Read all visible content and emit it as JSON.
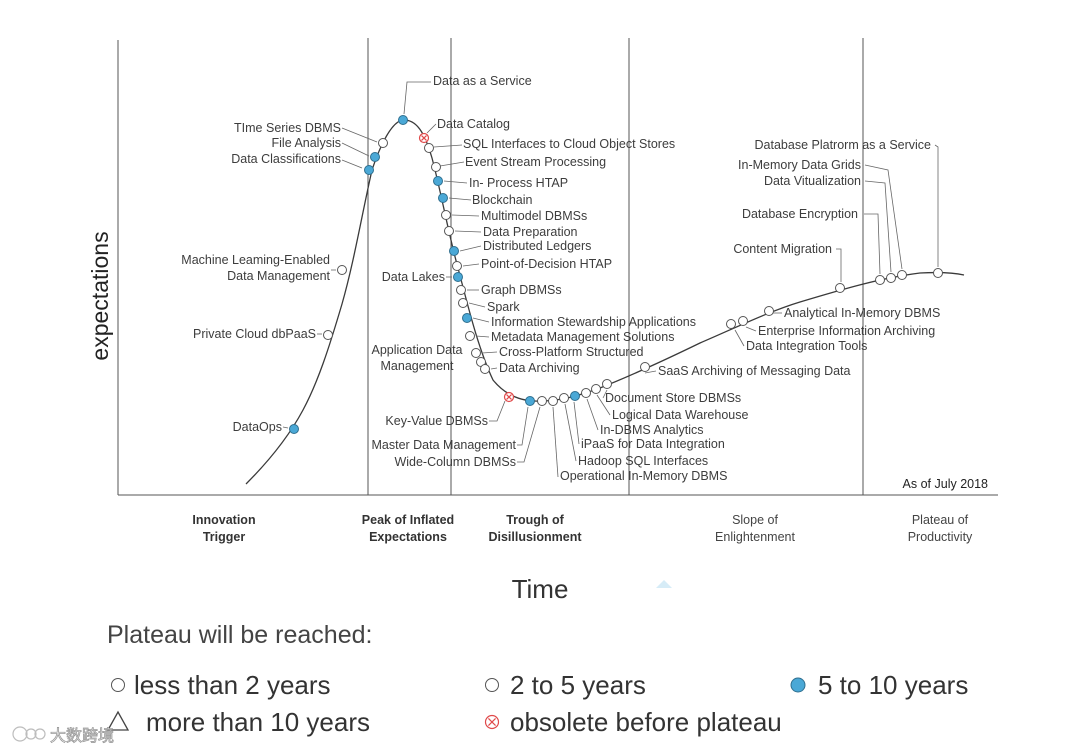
{
  "axes": {
    "y_label": "expectations",
    "x_label": "Time"
  },
  "as_of": "As of July 2018",
  "phases": [
    {
      "lines": [
        "Innovation",
        "Trigger"
      ],
      "bold": true
    },
    {
      "lines": [
        "Peak of Inflated",
        "Expectations"
      ],
      "bold": true
    },
    {
      "lines": [
        "Trough of",
        "Disillusionment"
      ],
      "bold": true
    },
    {
      "lines": [
        "Slope of",
        "Enlightenment"
      ],
      "bold": false
    },
    {
      "lines": [
        "Plateau of",
        "Productivity"
      ],
      "bold": false
    }
  ],
  "legend": {
    "title": "Plateau will be reached:",
    "items": [
      {
        "key": "lt2",
        "marker": "white-circle",
        "label": "less than 2 years"
      },
      {
        "key": "2to5",
        "marker": "white-circle",
        "label": "2 to 5 years"
      },
      {
        "key": "5to10",
        "marker": "blue-circle",
        "label": "5 to 10 years"
      },
      {
        "key": "gt10",
        "marker": "triangle",
        "label": "more than 10 years"
      },
      {
        "key": "obs",
        "marker": "red-x-circle",
        "label": "obsolete before plateau"
      }
    ]
  },
  "colors": {
    "blue": "#4aa8d6",
    "blue_stroke": "#2f6f8f",
    "red": "#e0494a",
    "curve": "#3a3a3a",
    "divider": "#555555"
  },
  "watermark": "大数跨境",
  "technologies": [
    {
      "name": "DataOps",
      "status": "5to10"
    },
    {
      "name": "Private Cloud dbPaaS",
      "status": "2to5"
    },
    {
      "name": "Machine Leaming-Enabled Data Management",
      "status": "2to5"
    },
    {
      "name": "Data Classifications",
      "status": "5to10"
    },
    {
      "name": "File Analysis",
      "status": "5to10"
    },
    {
      "name": "TIme Series DBMS",
      "status": "2to5"
    },
    {
      "name": "Data as a Service",
      "status": "5to10"
    },
    {
      "name": "Data Catalog",
      "status": "obs"
    },
    {
      "name": "SQL Interfaces to Cloud Object Stores",
      "status": "2to5"
    },
    {
      "name": "Event Stream Processing",
      "status": "2to5"
    },
    {
      "name": "In- Process HTAP",
      "status": "5to10"
    },
    {
      "name": "Blockchain",
      "status": "5to10"
    },
    {
      "name": "Multimodel DBMSs",
      "status": "2to5"
    },
    {
      "name": "Data Preparation",
      "status": "2to5"
    },
    {
      "name": "Distributed Ledgers",
      "status": "5to10"
    },
    {
      "name": "Point-of-Decision HTAP",
      "status": "2to5"
    },
    {
      "name": "Data Lakes",
      "status": "5to10"
    },
    {
      "name": "Graph DBMSs",
      "status": "2to5"
    },
    {
      "name": "Spark",
      "status": "2to5"
    },
    {
      "name": "Information Stewardship Applications",
      "status": "5to10"
    },
    {
      "name": "Metadata Management Solutions",
      "status": "2to5"
    },
    {
      "name": "Cross-Platform Structured",
      "status": "2to5"
    },
    {
      "name": "Application Data Management",
      "status": "2to5"
    },
    {
      "name": "Data Archiving",
      "status": "2to5"
    },
    {
      "name": "Key-Value DBMSs",
      "status": "obs"
    },
    {
      "name": "Master Data Management",
      "status": "5to10"
    },
    {
      "name": "Wide-Column DBMSs",
      "status": "2to5"
    },
    {
      "name": "Operational In-Memory DBMS",
      "status": "2to5"
    },
    {
      "name": "Hadoop SQL Interfaces",
      "status": "2to5"
    },
    {
      "name": "iPaaS for Data Integration",
      "status": "5to10"
    },
    {
      "name": "In-DBMS Analytics",
      "status": "2to5"
    },
    {
      "name": "Logical Data Warehouse",
      "status": "2to5"
    },
    {
      "name": "Document Store DBMSs",
      "status": "2to5"
    },
    {
      "name": "SaaS Archiving of Messaging Data",
      "status": "2to5"
    },
    {
      "name": "Data Integration Tools",
      "status": "2to5"
    },
    {
      "name": "Enterprise Information Archiving",
      "status": "2to5"
    },
    {
      "name": "Analytical In-Memory DBMS",
      "status": "2to5"
    },
    {
      "name": "Content Migration",
      "status": "2to5"
    },
    {
      "name": "Database Encryption",
      "status": "2to5"
    },
    {
      "name": "Data Vitualization",
      "status": "2to5"
    },
    {
      "name": "In-Memory Data Grids",
      "status": "2to5"
    },
    {
      "name": "Database Platrorm as a Service",
      "status": "2to5"
    }
  ]
}
